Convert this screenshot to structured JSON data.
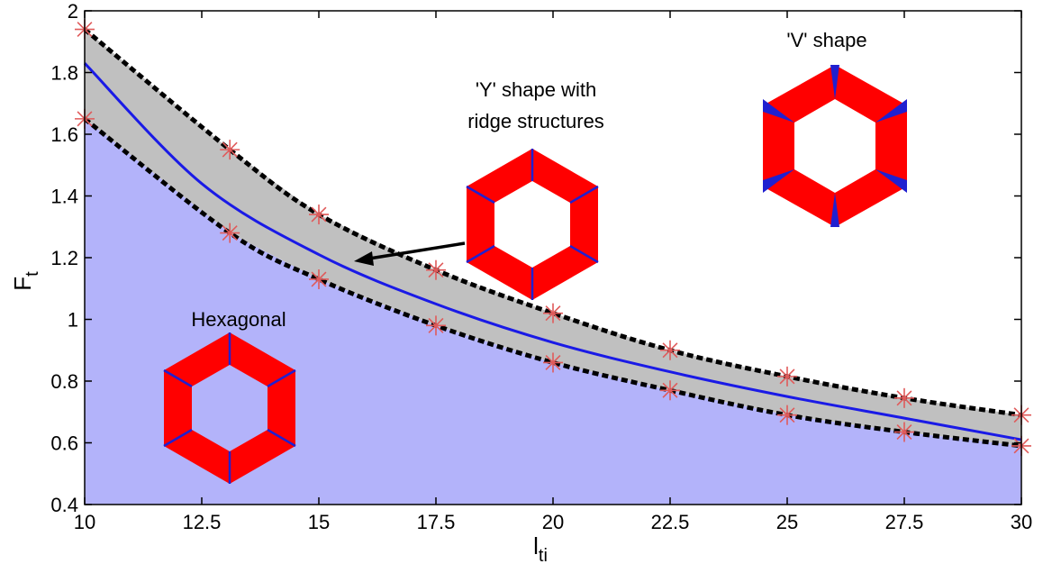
{
  "chart_data": {
    "type": "line",
    "xlabel": "l",
    "xlabel_sub": "ti",
    "ylabel": "F",
    "ylabel_sub": "t",
    "xlim": [
      10,
      30
    ],
    "ylim": [
      0.4,
      2
    ],
    "x_ticks": [
      "10",
      "12.5",
      "15",
      "17.5",
      "20",
      "22.5",
      "25",
      "27.5",
      "30"
    ],
    "y_ticks": [
      "0.4",
      "0.6",
      "0.8",
      "1",
      "1.2",
      "1.4",
      "1.6",
      "1.8",
      "2"
    ],
    "grid": false,
    "series": [
      {
        "role": "upper-boundary",
        "style": "dashed-black",
        "x": [
          10,
          13.1,
          15,
          17.5,
          20,
          22.5,
          25,
          27.5,
          30
        ],
        "y": [
          1.94,
          1.55,
          1.34,
          1.16,
          1.02,
          0.9,
          0.815,
          0.745,
          0.69
        ]
      },
      {
        "role": "lower-boundary",
        "style": "dashed-black",
        "x": [
          10,
          13.1,
          15,
          17.5,
          20,
          22.5,
          25,
          27.5,
          30
        ],
        "y": [
          1.65,
          1.28,
          1.13,
          0.98,
          0.86,
          0.77,
          0.69,
          0.635,
          0.59
        ]
      },
      {
        "role": "fit",
        "style": "solid-blue",
        "x": [
          10,
          12.5,
          15,
          17.5,
          20,
          22.5,
          25,
          27.5,
          30
        ],
        "y": [
          1.83,
          1.44,
          1.21,
          1.05,
          0.925,
          0.83,
          0.75,
          0.68,
          0.61
        ]
      }
    ],
    "annotations": {
      "y_shape_line1": "'Y' shape with",
      "y_shape_line2": "ridge structures",
      "v_shape": "'V' shape",
      "hexagonal": "Hexagonal"
    },
    "colors": {
      "lower_region": "#b3b3fa",
      "band": "#c0c0c0",
      "fit_line": "#1a1ae6",
      "markers": "#e05a5a",
      "hex_wall": "#ff0000",
      "hex_joint": "#2020d0"
    }
  }
}
